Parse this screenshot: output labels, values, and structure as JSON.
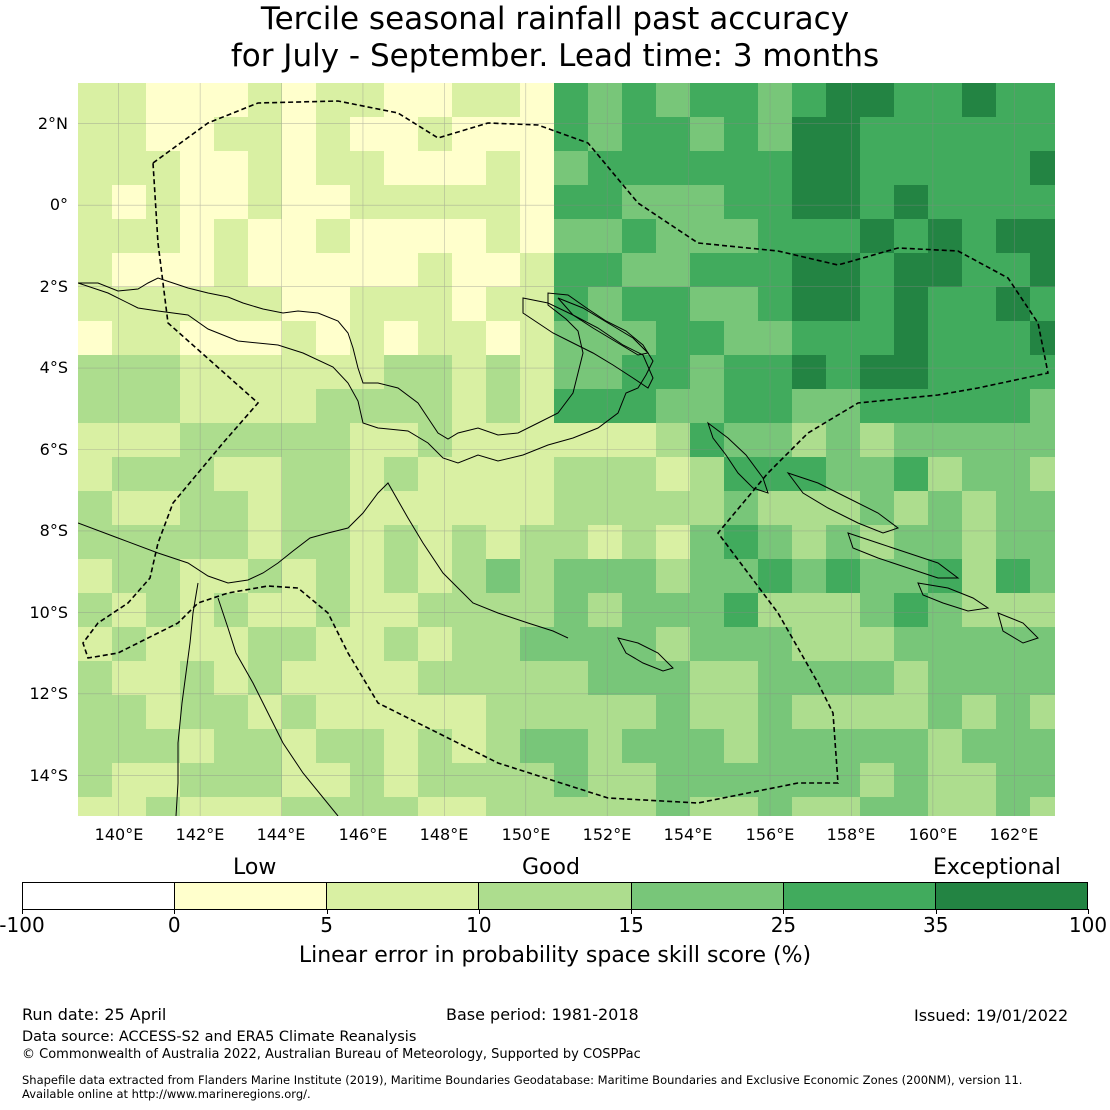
{
  "title": {
    "line1": "Tercile seasonal rainfall past accuracy",
    "line2": "for July - September. Lead time: 3 months"
  },
  "map": {
    "lon_range": [
      139,
      163
    ],
    "lat_range": [
      -15,
      3
    ],
    "lat_ticks": [
      "2°N",
      "0°",
      "2°S",
      "4°S",
      "6°S",
      "8°S",
      "10°S",
      "12°S",
      "14°S"
    ],
    "lon_ticks": [
      "140°E",
      "142°E",
      "144°E",
      "146°E",
      "148°E",
      "150°E",
      "152°E",
      "154°E",
      "156°E",
      "158°E",
      "160°E",
      "162°E"
    ],
    "grid": true,
    "land_color": "#ffffff",
    "coastline_color": "#000000",
    "boundary_style": "dashed"
  },
  "legend": {
    "qualitative": [
      "Low",
      "Good",
      "Exceptional"
    ],
    "ticks": [
      "-100",
      "0",
      "5",
      "10",
      "15",
      "25",
      "35",
      "100"
    ],
    "colors": [
      "#ffffff",
      "#ffffcc",
      "#d9f0a3",
      "#addd8e",
      "#78c679",
      "#41ab5d",
      "#238443"
    ],
    "label": "Linear error in probability space skill score (%)"
  },
  "footer": {
    "run_date": "Run date: 25 April",
    "base_period": "Base period: 1981-2018",
    "issued": "Issued: 19/01/2022",
    "data_source": "Data source: ACCESS-S2 and ERA5 Climate Reanalysis",
    "copyright": "© Commonwealth of Australia 2022, Australian Bureau of Meteorology, Supported by COSPPac",
    "shapefile_line1": "Shapefile data extracted from Flanders Marine Institute (2019), Maritime Boundaries Geodatabase: Maritime Boundaries and Exclusive Economic Zones (200NM), version 11.",
    "shapefile_line2": "Available online at http://www.marineregions.org/."
  }
}
